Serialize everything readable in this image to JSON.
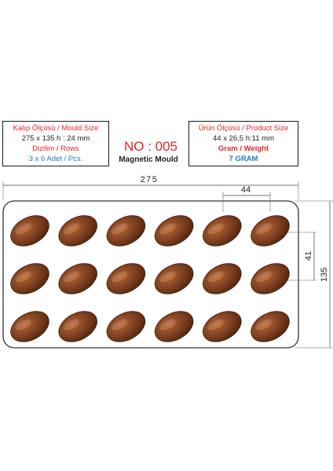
{
  "mould_spec": {
    "title": "Kalıp Ölçüsü / Mould Size",
    "size": "275 x 135 h : 24 mm",
    "rows_label": "Dizilim / Rows",
    "rows_value": "3 x 6 Adet / Pcs."
  },
  "product_spec": {
    "title": "Ürün Ölçüsü / Product Size",
    "size": "44 x 26,5 h:11 mm",
    "weight_label": "Gram / Weight",
    "weight_value": "7 GRAM"
  },
  "model": {
    "number": "NO : 005",
    "type": "Magnetic Mould"
  },
  "dimensions": {
    "width": "275",
    "height": "135",
    "cavity_length": "44",
    "cavity_pitch": "41"
  },
  "layout": {
    "rows": 3,
    "columns": 6
  },
  "colors": {
    "accent_red": "#e4242b",
    "accent_blue": "#1b7fc3",
    "chocolate": "#7a3e1c"
  }
}
